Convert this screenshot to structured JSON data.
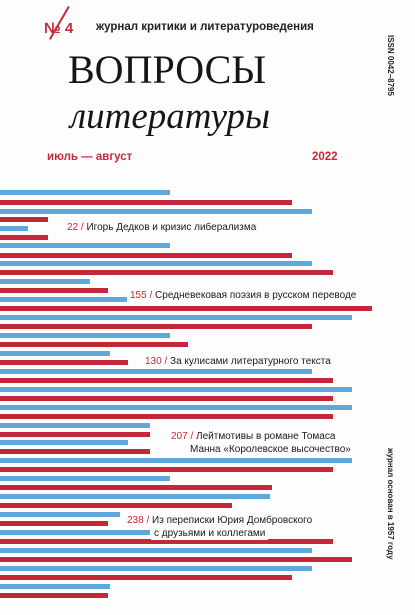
{
  "cover": {
    "issue": "№ 4",
    "subtitle": "журнал критики и литературоведения",
    "title_line1": "ВОПРОСЫ",
    "title_line2": "литературы",
    "date": "июль — август",
    "year": "2022",
    "issn": "ISSN 0042–8795",
    "founded": "журнал основан в 1957 году"
  },
  "contents": [
    {
      "page": "22",
      "line1": "Игорь Дедков и кризис либерализма",
      "line2": ""
    },
    {
      "page": "155",
      "line1": "Средневековая поэзия в русском переводе",
      "line2": ""
    },
    {
      "page": "130",
      "line1": "За кулисами литературного текста",
      "line2": ""
    },
    {
      "page": "207",
      "line1": "Лейтмотивы в романе Томаса",
      "line2": "Манна «Королевское высочество»"
    },
    {
      "page": "238",
      "line1": "Из переписки Юрия Домбровского",
      "line2": "с друзьями и коллегами"
    }
  ],
  "colors": {
    "accent_red": "#c4263a",
    "accent_blue": "#5fa8dc"
  }
}
